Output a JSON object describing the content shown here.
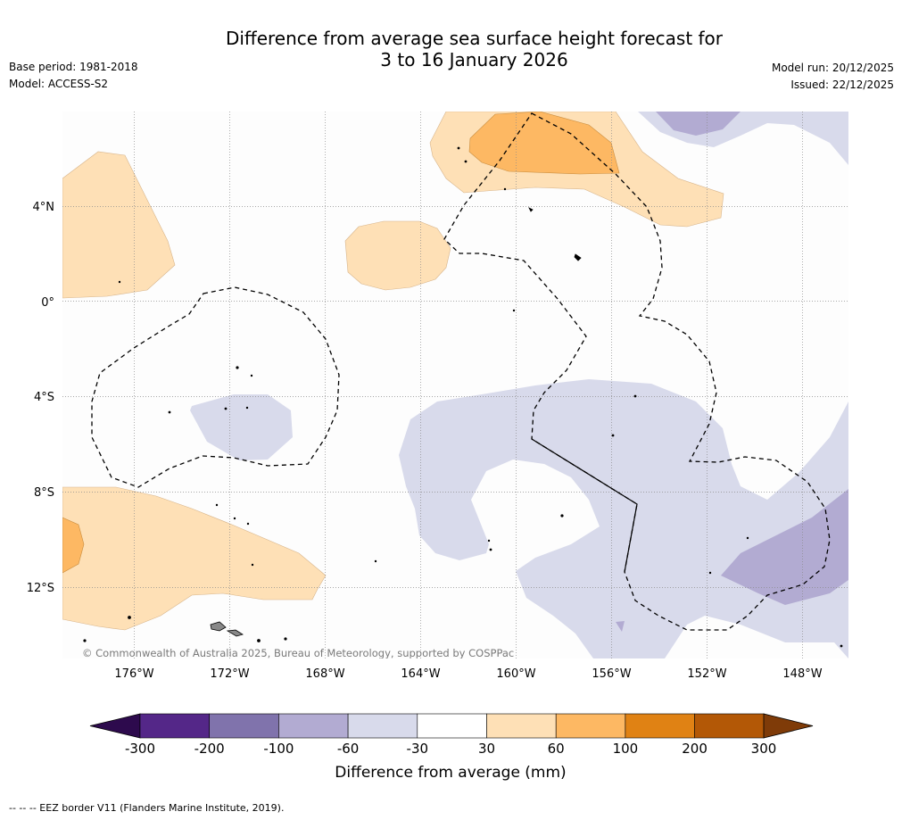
{
  "title_line1": "Difference from average sea surface height forecast for",
  "title_line2": "3 to 16 January 2026",
  "meta_left": {
    "base_period": "Base period: 1981-2018",
    "model": "Model: ACCESS-S2"
  },
  "meta_right": {
    "model_run": "Model run: 20/12/2025",
    "issued": "Issued: 22/12/2025"
  },
  "map": {
    "lat_labels": [
      "4°N",
      "0°",
      "4°S",
      "8°S",
      "12°S"
    ],
    "lon_labels": [
      "176°W",
      "172°W",
      "168°W",
      "164°W",
      "160°W",
      "156°W",
      "152°W",
      "148°W"
    ],
    "copyright": "© Commonwealth of Australia 2025, Bureau of Meteorology, supported by COSPPac"
  },
  "legend": {
    "title": "Difference from average (mm)",
    "ticks": [
      "-300",
      "-200",
      "-100",
      "-60",
      "-30",
      "30",
      "60",
      "100",
      "200",
      "300"
    ],
    "colors": [
      "#2d0a4d",
      "#542788",
      "#8073ac",
      "#b2abd2",
      "#d8daeb",
      "#ffffff",
      "#fee0b6",
      "#fdb863",
      "#e08214",
      "#b35806",
      "#7f3b08"
    ]
  },
  "footer": "--  --  -- EEZ border V11 (Flanders Marine Institute, 2019)."
}
